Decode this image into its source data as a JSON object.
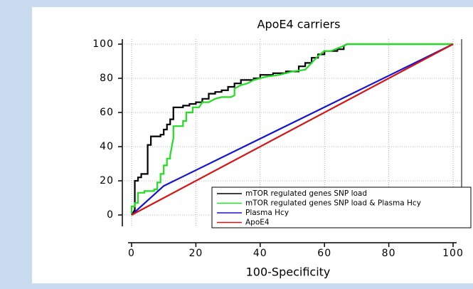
{
  "chart_data": {
    "type": "line",
    "title": "ApoE4 carriers",
    "xlabel": "100-Specificity",
    "xlim": [
      0,
      100
    ],
    "ylim": [
      0,
      100
    ],
    "xticks": [
      0,
      20,
      40,
      60,
      80,
      100
    ],
    "yticks": [
      0,
      20,
      40,
      60,
      80,
      100
    ],
    "grid": true,
    "legend": "lower right",
    "series": [
      {
        "name": "mTOR regulated genes SNP load",
        "color": "#000000",
        "x": [
          0,
          1,
          1,
          2,
          2,
          3,
          3,
          5,
          5,
          6,
          6,
          9,
          9,
          10,
          10,
          11,
          11,
          12,
          12,
          13,
          13,
          16,
          16,
          18,
          18,
          20,
          20,
          22,
          22,
          24,
          24,
          26,
          26,
          28,
          28,
          30,
          30,
          32,
          32,
          34,
          34,
          38,
          38,
          40,
          40,
          44,
          44,
          48,
          48,
          52,
          52,
          54,
          54,
          56,
          56,
          58,
          58,
          60,
          60,
          64,
          64,
          66,
          66,
          67,
          100
        ],
        "values": [
          0,
          3,
          20,
          20,
          22,
          22,
          24,
          24,
          41,
          41,
          46,
          46,
          47,
          47,
          50,
          50,
          53,
          53,
          56,
          56,
          63,
          63,
          64,
          64,
          65,
          65,
          66,
          66,
          68,
          68,
          71,
          71,
          72,
          72,
          73,
          73,
          75,
          75,
          77,
          77,
          79,
          79,
          80,
          80,
          82,
          82,
          83,
          83,
          84,
          84,
          87,
          87,
          89,
          89,
          92,
          92,
          94,
          94,
          96,
          96,
          97,
          97,
          99,
          100,
          100
        ]
      },
      {
        "name": "mTOR regulated genes SNP load & Plasma Hcy",
        "color": "#22dd22",
        "x": [
          0,
          0,
          1,
          1,
          2,
          2,
          4,
          4,
          7,
          7,
          8,
          8,
          9,
          9,
          10,
          10,
          11,
          11,
          12,
          12,
          13,
          13,
          16,
          16,
          17,
          17,
          19,
          19,
          21,
          22,
          24,
          26,
          28,
          31,
          32,
          32,
          34,
          36,
          38,
          40,
          42,
          46,
          50,
          54,
          56,
          58,
          60,
          62,
          66,
          67,
          100
        ],
        "values": [
          0,
          5,
          5,
          7,
          7,
          13,
          13,
          14,
          14,
          15,
          15,
          19,
          19,
          24,
          24,
          29,
          29,
          33,
          33,
          35,
          45,
          52,
          52,
          55,
          55,
          60,
          60,
          63,
          63,
          66,
          66,
          68,
          69,
          69,
          70,
          74,
          76,
          77,
          79,
          80,
          81,
          82,
          84,
          85,
          89,
          93,
          96,
          96,
          99,
          100,
          100
        ]
      },
      {
        "name": "Plasma Hcy",
        "color": "#1515d0",
        "x": [
          0,
          10,
          100
        ],
        "values": [
          0,
          17,
          100
        ]
      },
      {
        "name": "ApoE4",
        "color": "#d41515",
        "x": [
          0,
          100
        ],
        "values": [
          0,
          100
        ]
      }
    ]
  }
}
